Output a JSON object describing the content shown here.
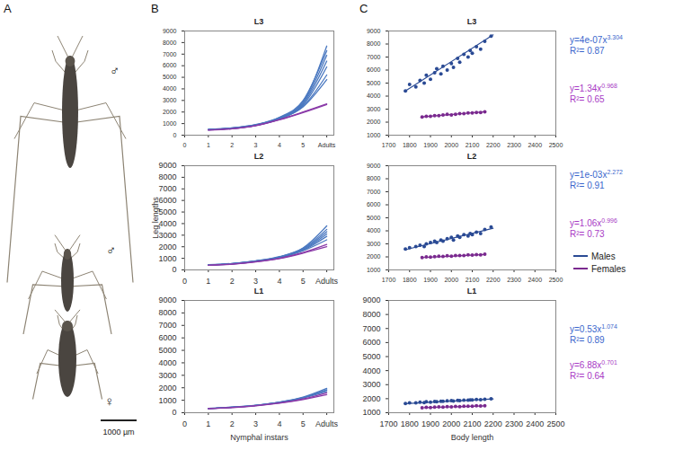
{
  "panel_labels": [
    "A",
    "B",
    "C"
  ],
  "photo": {
    "specimens": [
      "♂",
      "♂",
      "♀"
    ],
    "scale_bar": "1000 µm"
  },
  "chart_data": [
    {
      "type": "line",
      "title": "L3",
      "x": [
        1,
        2,
        3,
        4,
        5,
        6
      ],
      "xlim": [
        0,
        6.3
      ],
      "xticks": [
        0,
        1,
        2,
        3,
        4,
        5,
        {
          "value": 6,
          "label": "Adults"
        }
      ],
      "ylim": [
        0,
        9000
      ],
      "yticks": [
        0,
        1000,
        2000,
        3000,
        4000,
        5000,
        6000,
        7000,
        8000,
        9000
      ],
      "series": [
        {
          "name": "Males",
          "color": "#4a78c0",
          "values": [
            [
              500,
              620,
              900,
              1500,
              2900,
              7700
            ],
            [
              500,
              630,
              920,
              1550,
              3000,
              7300
            ],
            [
              490,
              610,
              880,
              1480,
              2800,
              6900
            ],
            [
              480,
              600,
              870,
              1450,
              2700,
              6400
            ],
            [
              470,
              590,
              860,
              1420,
              2600,
              5900
            ],
            [
              460,
              580,
              850,
              1400,
              2500,
              5200
            ],
            [
              450,
              570,
              840,
              1380,
              2450,
              4800
            ]
          ]
        },
        {
          "name": "Females",
          "color": "#8a3aa8",
          "values": [
            [
              450,
              560,
              830,
              1350,
              2000,
              2700
            ],
            [
              440,
              550,
              820,
              1320,
              1950,
              2650
            ]
          ]
        }
      ]
    },
    {
      "type": "line",
      "title": "L2",
      "ylabel": "Leg lengths",
      "x": [
        1,
        2,
        3,
        4,
        5,
        6
      ],
      "xlim": [
        0,
        6.3
      ],
      "xticks": [
        0,
        1,
        2,
        3,
        4,
        5,
        {
          "value": 6,
          "label": "Adults"
        }
      ],
      "ylim": [
        0,
        9000
      ],
      "yticks": [
        0,
        1000,
        2000,
        3000,
        4000,
        5000,
        6000,
        7000,
        8000,
        9000
      ],
      "series": [
        {
          "name": "Males",
          "color": "#4a78c0",
          "values": [
            [
              450,
              560,
              780,
              1150,
              1900,
              3800
            ],
            [
              440,
              550,
              770,
              1120,
              1850,
              3500
            ],
            [
              430,
              540,
              760,
              1100,
              1800,
              3300
            ],
            [
              420,
              530,
              750,
              1080,
              1750,
              3100
            ],
            [
              410,
              520,
              740,
              1060,
              1700,
              2900
            ],
            [
              400,
              510,
              730,
              1040,
              1650,
              2600
            ]
          ]
        },
        {
          "name": "Females",
          "color": "#8a3aa8",
          "values": [
            [
              400,
              500,
              700,
              1000,
              1500,
              2200
            ],
            [
              390,
              490,
              690,
              980,
              1450,
              2000
            ]
          ]
        }
      ]
    },
    {
      "type": "line",
      "title": "L1",
      "xlabel": "Nymphal instars",
      "x": [
        1,
        2,
        3,
        4,
        5,
        6
      ],
      "xlim": [
        0,
        6.3
      ],
      "xticks": [
        0,
        1,
        2,
        3,
        4,
        5,
        {
          "value": 6,
          "label": "Adults"
        }
      ],
      "ylim": [
        0,
        9000
      ],
      "yticks": [
        0,
        1000,
        2000,
        3000,
        4000,
        5000,
        6000,
        7000,
        8000,
        9000
      ],
      "series": [
        {
          "name": "Males",
          "color": "#4a78c0",
          "values": [
            [
              350,
              450,
              600,
              850,
              1250,
              1950
            ],
            [
              345,
              445,
              590,
              840,
              1220,
              1850
            ],
            [
              340,
              440,
              585,
              830,
              1200,
              1800
            ],
            [
              335,
              435,
              580,
              820,
              1180,
              1700
            ]
          ]
        },
        {
          "name": "Females",
          "color": "#8a3aa8",
          "values": [
            [
              330,
              420,
              560,
              780,
              1100,
              1600
            ],
            [
              325,
              415,
              550,
              760,
              1050,
              1450
            ]
          ]
        }
      ]
    },
    {
      "type": "scatter",
      "title": "L3",
      "xlim": [
        1700,
        2500
      ],
      "xticks": [
        1700,
        1800,
        1900,
        2000,
        2100,
        2200,
        2300,
        2400,
        2500
      ],
      "ylim": [
        1000,
        9000
      ],
      "yticks": [
        1000,
        2000,
        3000,
        4000,
        5000,
        6000,
        7000,
        8000,
        9000
      ],
      "series": [
        {
          "name": "Males",
          "color": "#2a4a94",
          "x": [
            1780,
            1800,
            1830,
            1850,
            1870,
            1880,
            1900,
            1920,
            1930,
            1950,
            1960,
            1980,
            2000,
            2010,
            2030,
            2040,
            2060,
            2080,
            2090,
            2100,
            2120,
            2140,
            2160,
            2190
          ],
          "values": [
            4400,
            4900,
            4700,
            5200,
            5000,
            5600,
            5300,
            5800,
            6100,
            5700,
            6300,
            6000,
            6500,
            6200,
            6900,
            6600,
            7200,
            7000,
            7500,
            7300,
            7800,
            7600,
            8200,
            8600
          ],
          "trend": {
            "x": [
              1780,
              2200
            ],
            "values": [
              4400,
              8700
            ]
          },
          "equation": "y=4e-07x",
          "exponent": "3.304",
          "r2": "R²= 0.87"
        },
        {
          "name": "Females",
          "color": "#7a2a8f",
          "x": [
            1860,
            1880,
            1900,
            1920,
            1940,
            1960,
            1980,
            2000,
            2020,
            2040,
            2060,
            2080,
            2100,
            2120,
            2140,
            2160
          ],
          "values": [
            2400,
            2450,
            2450,
            2500,
            2500,
            2550,
            2600,
            2550,
            2600,
            2650,
            2650,
            2700,
            2700,
            2750,
            2750,
            2800
          ],
          "trend": {
            "x": [
              1860,
              2160
            ],
            "values": [
              2400,
              2800
            ]
          },
          "equation": "y=1.34x",
          "exponent": "0.968",
          "r2": "R²= 0.65"
        }
      ]
    },
    {
      "type": "scatter",
      "title": "L2",
      "legend": "right",
      "xlim": [
        1700,
        2500
      ],
      "xticks": [
        1700,
        1800,
        1900,
        2000,
        2100,
        2200,
        2300,
        2400,
        2500
      ],
      "ylim": [
        1000,
        9000
      ],
      "yticks": [
        1000,
        2000,
        3000,
        4000,
        5000,
        6000,
        7000,
        8000,
        9000
      ],
      "series": [
        {
          "name": "Males",
          "color": "#2a4a94",
          "x": [
            1780,
            1800,
            1830,
            1850,
            1870,
            1880,
            1900,
            1920,
            1930,
            1950,
            1960,
            1980,
            2000,
            2010,
            2030,
            2040,
            2060,
            2080,
            2090,
            2100,
            2120,
            2140,
            2160,
            2190
          ],
          "values": [
            2600,
            2700,
            2800,
            2900,
            2800,
            3000,
            3100,
            3200,
            3100,
            3300,
            3200,
            3400,
            3500,
            3300,
            3600,
            3500,
            3700,
            3600,
            3800,
            3700,
            3900,
            3800,
            4100,
            4300
          ],
          "trend": {
            "x": [
              1780,
              2200
            ],
            "values": [
              2550,
              4200
            ]
          },
          "equation": "y=1e-03x",
          "exponent": "2.272",
          "r2": "R²= 0.91"
        },
        {
          "name": "Females",
          "color": "#7a2a8f",
          "x": [
            1860,
            1880,
            1900,
            1920,
            1940,
            1960,
            1980,
            2000,
            2020,
            2040,
            2060,
            2080,
            2100,
            2120,
            2140,
            2160
          ],
          "values": [
            1950,
            2000,
            1980,
            2020,
            2050,
            2030,
            2080,
            2060,
            2100,
            2110,
            2100,
            2150,
            2140,
            2180,
            2160,
            2200
          ],
          "trend": {
            "x": [
              1860,
              2160
            ],
            "values": [
              1950,
              2180
            ]
          },
          "equation": "y=1.06x",
          "exponent": "0.996",
          "r2": "R²= 0.73"
        }
      ]
    },
    {
      "type": "scatter",
      "title": "L1",
      "xlabel": "Body length",
      "xlim": [
        1700,
        2500
      ],
      "xticks": [
        1700,
        1800,
        1900,
        2000,
        2100,
        2200,
        2300,
        2400,
        2500
      ],
      "ylim": [
        1000,
        9000
      ],
      "yticks": [
        1000,
        2000,
        3000,
        4000,
        5000,
        6000,
        7000,
        8000,
        9000
      ],
      "series": [
        {
          "name": "Males",
          "color": "#2a4a94",
          "x": [
            1780,
            1800,
            1830,
            1850,
            1870,
            1880,
            1900,
            1920,
            1930,
            1950,
            1960,
            1980,
            2000,
            2010,
            2030,
            2040,
            2060,
            2080,
            2090,
            2100,
            2120,
            2140,
            2160,
            2190
          ],
          "values": [
            1650,
            1700,
            1700,
            1750,
            1720,
            1780,
            1760,
            1800,
            1790,
            1820,
            1810,
            1850,
            1860,
            1840,
            1880,
            1870,
            1900,
            1890,
            1920,
            1910,
            1940,
            1930,
            1960,
            2000
          ],
          "trend": {
            "x": [
              1780,
              2200
            ],
            "values": [
              1650,
              1980
            ]
          },
          "equation": "y=0.53x",
          "exponent": "1.074",
          "r2": "R²= 0.89"
        },
        {
          "name": "Females",
          "color": "#7a2a8f",
          "x": [
            1860,
            1880,
            1900,
            1920,
            1940,
            1960,
            1980,
            2000,
            2020,
            2040,
            2060,
            2080,
            2100,
            2120,
            2140,
            2160
          ],
          "values": [
            1350,
            1380,
            1370,
            1400,
            1410,
            1400,
            1430,
            1420,
            1450,
            1440,
            1460,
            1470,
            1460,
            1490,
            1480,
            1500
          ],
          "trend": {
            "x": [
              1870,
              2160
            ],
            "values": [
              1360,
              1490
            ]
          },
          "equation": "y=6.88x",
          "exponent": "0.701",
          "r2": "R²= 0.64"
        }
      ]
    }
  ]
}
